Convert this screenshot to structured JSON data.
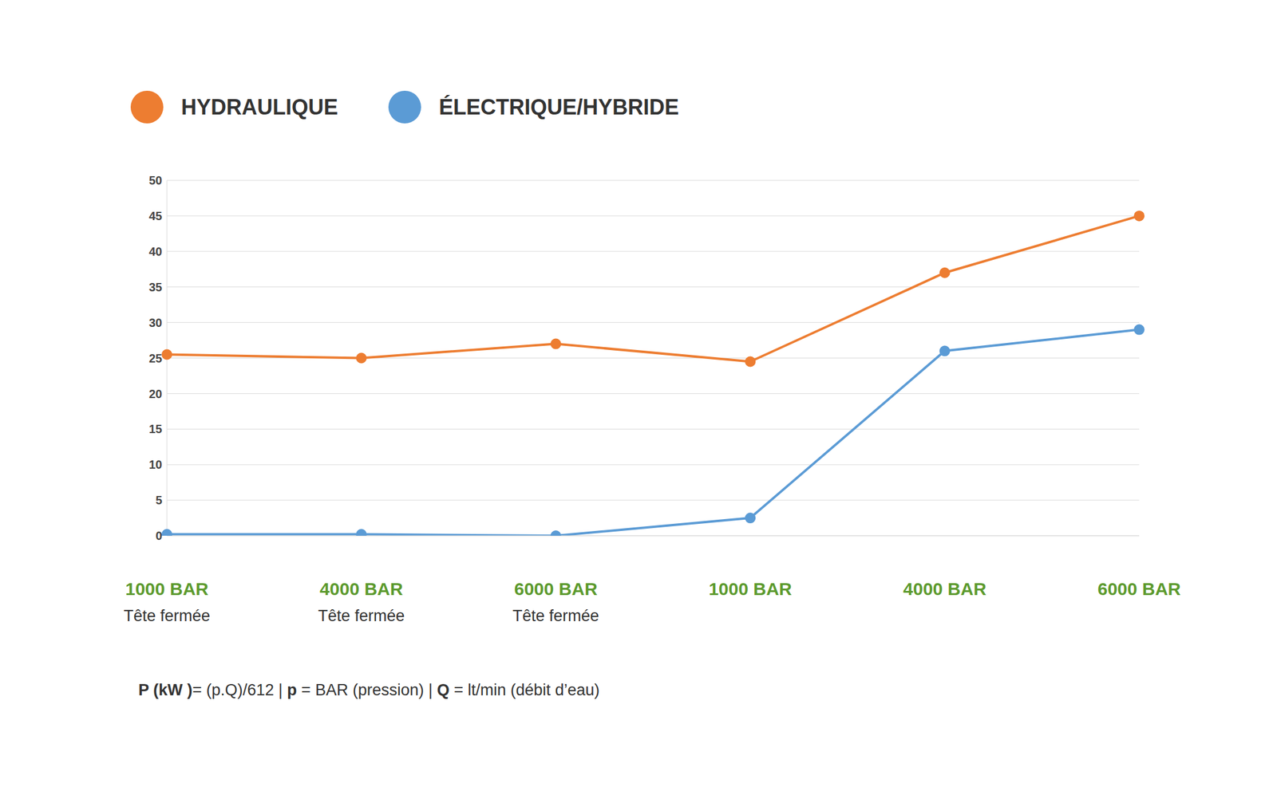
{
  "chart_data": {
    "type": "line",
    "categories": [
      "1000 BAR",
      "4000 BAR",
      "6000 BAR",
      "1000 BAR",
      "4000 BAR",
      "6000 BAR"
    ],
    "sublabels": [
      "Tête fermée",
      "Tête fermée",
      "Tête fermée",
      null,
      null,
      null
    ],
    "series": [
      {
        "name": "HYDRAULIQUE",
        "color": "#ED7D31",
        "marker": "circle",
        "values": [
          25.5,
          25,
          27,
          24.5,
          37,
          45
        ]
      },
      {
        "name": "ÉLECTRIQUE/HYBRIDE",
        "color": "#5B9BD5",
        "marker": "circle",
        "values": [
          0.2,
          0.2,
          0,
          2.5,
          26,
          29
        ]
      }
    ],
    "ylim": [
      0,
      50
    ],
    "yticks": [
      0,
      5,
      10,
      15,
      20,
      25,
      30,
      35,
      40,
      45,
      50
    ],
    "grid": true,
    "legend": "top-left",
    "footnote": [
      "P (kW )",
      "= (p.Q)/612 | ",
      "p",
      " = BAR (pression) | ",
      "Q",
      " = lt/min (débit d’eau)"
    ]
  }
}
